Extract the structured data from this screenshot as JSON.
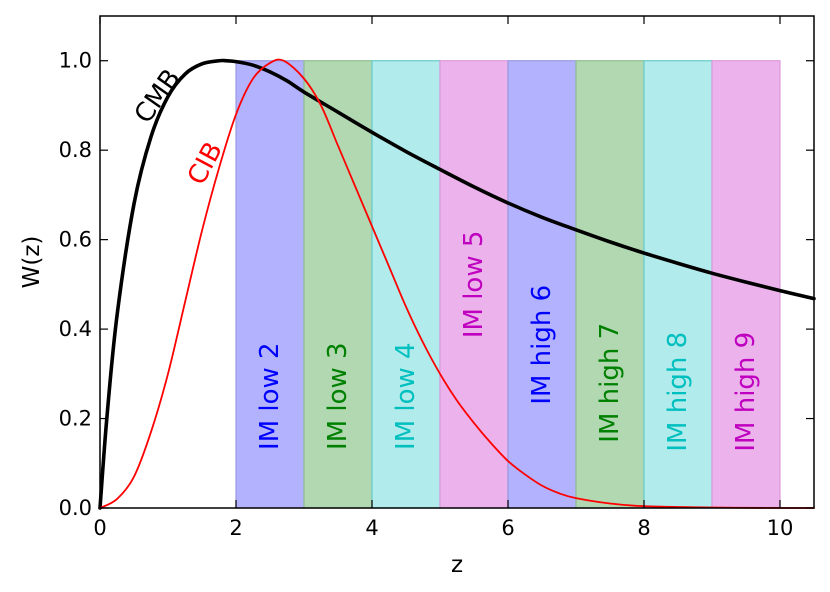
{
  "chart_data": {
    "type": "line",
    "title": "",
    "xlabel": "z",
    "ylabel": "W(z)",
    "xlim": [
      0,
      10.5
    ],
    "ylim": [
      0,
      1.1
    ],
    "xticks": [
      0,
      2,
      4,
      6,
      8,
      10
    ],
    "xtick_labels": [
      "0",
      "2",
      "4",
      "6",
      "8",
      "10"
    ],
    "yticks": [
      0.0,
      0.2,
      0.4,
      0.6,
      0.8,
      1.0
    ],
    "ytick_labels": [
      "0.0",
      "0.2",
      "0.4",
      "0.6",
      "0.8",
      "1.0"
    ],
    "series": [
      {
        "name": "CMB",
        "color": "#000000",
        "x": [
          0,
          0.1,
          0.25,
          0.5,
          0.75,
          1.0,
          1.25,
          1.5,
          1.75,
          1.85,
          2.0,
          2.25,
          2.5,
          2.75,
          3.0,
          3.5,
          4.0,
          4.5,
          5.0,
          5.5,
          6.0,
          6.5,
          7.0,
          7.5,
          8.0,
          8.5,
          9.0,
          9.5,
          10.0,
          10.5
        ],
        "y": [
          0,
          0.2,
          0.43,
          0.68,
          0.83,
          0.92,
          0.97,
          0.993,
          1.0,
          1.0,
          0.998,
          0.99,
          0.975,
          0.955,
          0.93,
          0.885,
          0.84,
          0.797,
          0.757,
          0.718,
          0.682,
          0.65,
          0.622,
          0.595,
          0.57,
          0.547,
          0.525,
          0.505,
          0.486,
          0.468
        ]
      },
      {
        "name": "CIB",
        "color": "#ff0000",
        "x": [
          0,
          0.25,
          0.5,
          0.75,
          1.0,
          1.25,
          1.5,
          1.75,
          2.0,
          2.25,
          2.5,
          2.7,
          3.0,
          3.25,
          3.5,
          3.75,
          4.0,
          4.25,
          4.5,
          4.75,
          5.0,
          5.25,
          5.5,
          5.75,
          6.0,
          6.25,
          6.5,
          6.75,
          7.0,
          7.5,
          8.0,
          9.0,
          10.0,
          10.5
        ],
        "y": [
          0,
          0.02,
          0.07,
          0.17,
          0.3,
          0.46,
          0.62,
          0.76,
          0.88,
          0.96,
          0.995,
          1.0,
          0.96,
          0.9,
          0.81,
          0.72,
          0.63,
          0.54,
          0.45,
          0.37,
          0.3,
          0.24,
          0.19,
          0.145,
          0.105,
          0.075,
          0.05,
          0.033,
          0.022,
          0.01,
          0.004,
          0.001,
          0.0,
          0.0
        ]
      }
    ],
    "curve_labels": [
      {
        "text": "CMB",
        "color": "#000000",
        "x": 0.85,
        "y": 0.92,
        "angle": -55
      },
      {
        "text": "CIB",
        "color": "#ff0000",
        "x": 1.55,
        "y": 0.77,
        "angle": -62
      }
    ],
    "bands": [
      {
        "label": "IM low 2",
        "x0": 2,
        "x1": 3,
        "top": 1.0,
        "fill": "#b2b2ff",
        "edge": "#9a9ae0",
        "text_color": "#0000ff",
        "text_y": 0.25
      },
      {
        "label": "IM low 3",
        "x0": 3,
        "x1": 4,
        "top": 1.0,
        "fill": "#b2d8b2",
        "edge": "#8fbf8f",
        "text_color": "#008000",
        "text_y": 0.25
      },
      {
        "label": "IM low 4",
        "x0": 4,
        "x1": 5,
        "top": 1.0,
        "fill": "#b2ebeb",
        "edge": "#66cccc",
        "text_color": "#00bfbf",
        "text_y": 0.25
      },
      {
        "label": "IM low 5",
        "x0": 5,
        "x1": 6,
        "top": 1.0,
        "fill": "#ebb2eb",
        "edge": "#dd99dd",
        "text_color": "#bf00bf",
        "text_y": 0.5
      },
      {
        "label": "IM high 6",
        "x0": 6,
        "x1": 7,
        "top": 1.0,
        "fill": "#b2b2ff",
        "edge": "#9a9ae0",
        "text_color": "#0000ff",
        "text_y": 0.365
      },
      {
        "label": "IM high 7",
        "x0": 7,
        "x1": 8,
        "top": 1.0,
        "fill": "#b2d8b2",
        "edge": "#8fbf8f",
        "text_color": "#008000",
        "text_y": 0.28
      },
      {
        "label": "IM high 8",
        "x0": 8,
        "x1": 9,
        "top": 1.0,
        "fill": "#b2ebeb",
        "edge": "#66cccc",
        "text_color": "#00bfbf",
        "text_y": 0.26
      },
      {
        "label": "IM high 9",
        "x0": 9,
        "x1": 10,
        "top": 1.0,
        "fill": "#ebb2eb",
        "edge": "#dd99dd",
        "text_color": "#bf00bf",
        "text_y": 0.26
      }
    ]
  }
}
